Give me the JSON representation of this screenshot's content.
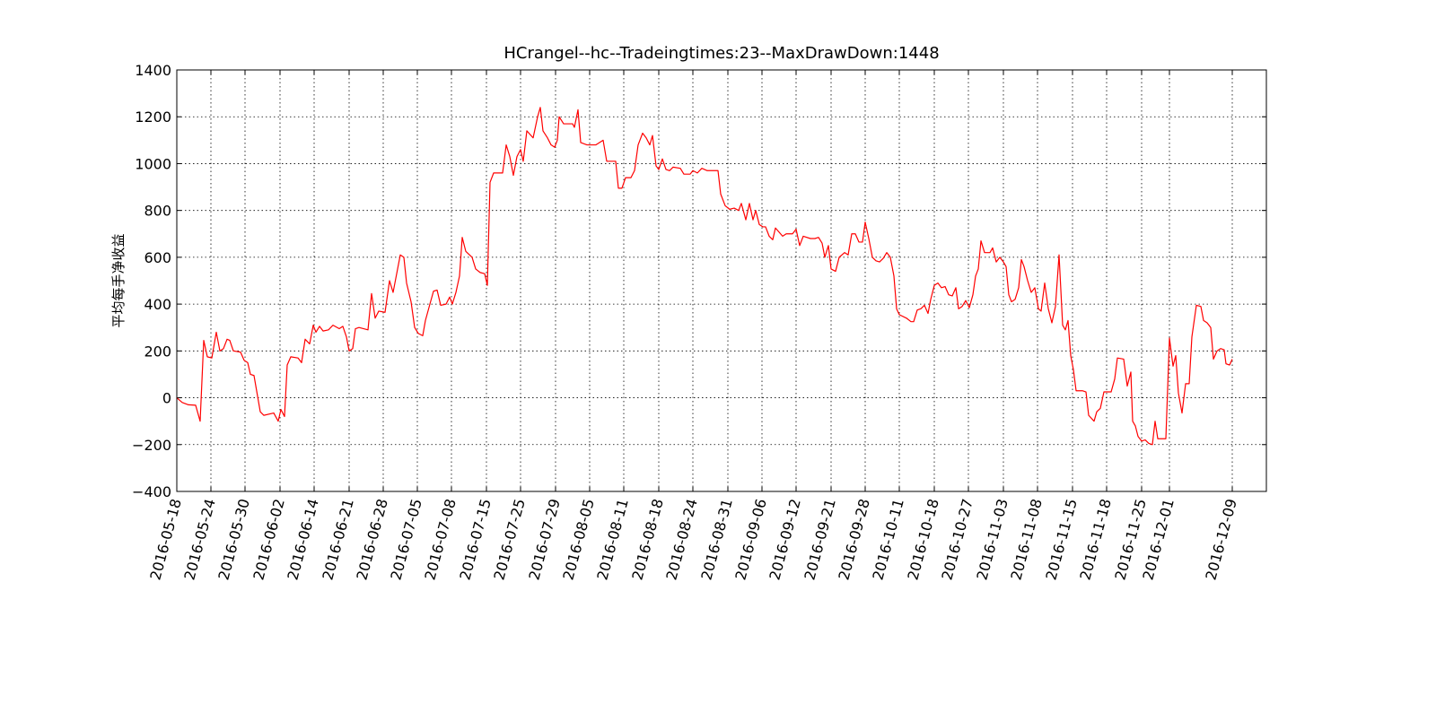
{
  "chart_data": {
    "type": "line",
    "title": "HCrangel--hc--Tradeingtimes:23--MaxDrawDown:1448",
    "y_label": "平均每手净收益",
    "x": [
      0,
      6,
      13,
      21,
      26,
      30,
      34,
      39,
      44,
      48,
      52,
      56,
      59,
      63,
      71,
      75,
      79,
      82,
      86,
      93,
      97,
      108,
      113,
      116,
      120,
      123,
      127,
      135,
      139,
      143,
      148,
      152,
      155,
      159,
      163,
      169,
      174,
      181,
      185,
      189,
      192,
      196,
      199,
      203,
      213,
      217,
      221,
      225,
      232,
      237,
      241,
      249,
      253,
      256,
      261,
      265,
      269,
      274,
      277,
      282,
      286,
      290,
      294,
      300,
      304,
      307,
      311,
      315,
      318,
      322,
      329,
      333,
      338,
      343,
      346,
      349,
      353,
      363,
      367,
      371,
      375,
      379,
      383,
      386,
      390,
      397,
      402,
      405,
      408,
      413,
      417,
      421,
      424,
      426,
      431,
      441,
      443,
      447,
      450,
      457,
      467,
      475,
      479,
      489,
      492,
      496,
      500,
      506,
      510,
      514,
      519,
      523,
      527,
      530,
      534,
      537,
      541,
      545,
      549,
      553,
      561,
      565,
      572,
      575,
      580,
      585,
      591,
      603,
      606,
      611,
      616,
      621,
      626,
      629,
      634,
      638,
      642,
      645,
      649,
      653,
      656,
      660,
      664,
      667,
      675,
      679,
      686,
      690,
      694,
      698,
      706,
      711,
      715,
      719,
      722,
      726,
      729,
      734,
      738,
      744,
      748,
      752,
      756,
      760,
      764,
      767,
      771,
      775,
      779,
      783,
      787,
      791,
      795,
      799,
      802,
      805,
      813,
      818,
      821,
      825,
      829,
      833,
      837,
      840,
      844,
      848,
      852,
      856,
      860,
      864,
      868,
      871,
      875,
      879,
      883,
      887,
      890,
      893,
      896,
      900,
      906,
      909,
      913,
      917,
      921,
      924,
      927,
      930,
      934,
      938,
      941,
      944,
      948,
      952,
      956,
      960,
      963,
      967,
      971,
      975,
      979,
      983,
      987,
      990,
      993,
      996,
      999,
      1002,
      1009,
      1013,
      1016,
      1022,
      1025,
      1029,
      1033,
      1041,
      1045,
      1048,
      1055,
      1059,
      1063,
      1065,
      1068,
      1071,
      1075,
      1079,
      1083,
      1087,
      1090,
      1093,
      1102,
      1106,
      1110,
      1113,
      1116,
      1120,
      1124,
      1128,
      1131,
      1136,
      1141,
      1144,
      1148,
      1152,
      1155,
      1159,
      1163,
      1167,
      1169,
      1173,
      1176
    ],
    "series": [
      {
        "color": "#ff0000",
        "values": [
          0,
          -20,
          -30,
          -32,
          -100,
          245,
          175,
          170,
          280,
          200,
          210,
          250,
          245,
          200,
          195,
          160,
          150,
          100,
          95,
          -60,
          -75,
          -65,
          -100,
          -50,
          -80,
          140,
          175,
          170,
          150,
          250,
          230,
          310,
          280,
          305,
          285,
          290,
          310,
          295,
          305,
          260,
          200,
          210,
          295,
          300,
          290,
          445,
          340,
          370,
          365,
          500,
          450,
          610,
          600,
          490,
          410,
          300,
          275,
          265,
          330,
          400,
          455,
          460,
          395,
          400,
          430,
          400,
          450,
          520,
          685,
          625,
          600,
          550,
          535,
          530,
          480,
          920,
          960,
          960,
          1080,
          1030,
          950,
          1030,
          1060,
          1010,
          1140,
          1110,
          1200,
          1240,
          1140,
          1110,
          1080,
          1070,
          1100,
          1200,
          1170,
          1170,
          1155,
          1230,
          1090,
          1080,
          1080,
          1100,
          1010,
          1010,
          895,
          895,
          940,
          940,
          970,
          1080,
          1130,
          1110,
          1080,
          1120,
          990,
          975,
          1020,
          975,
          970,
          985,
          980,
          955,
          955,
          970,
          960,
          980,
          970,
          970,
          870,
          820,
          805,
          810,
          800,
          830,
          760,
          830,
          760,
          800,
          740,
          730,
          730,
          690,
          675,
          725,
          690,
          700,
          700,
          720,
          650,
          690,
          680,
          680,
          685,
          660,
          600,
          650,
          550,
          540,
          600,
          620,
          610,
          700,
          700,
          665,
          665,
          750,
          680,
          600,
          585,
          580,
          595,
          620,
          600,
          520,
          380,
          355,
          340,
          325,
          325,
          375,
          380,
          395,
          360,
          420,
          480,
          490,
          470,
          475,
          440,
          435,
          470,
          380,
          390,
          415,
          385,
          440,
          520,
          550,
          670,
          620,
          620,
          640,
          580,
          600,
          580,
          560,
          440,
          410,
          420,
          470,
          590,
          560,
          500,
          450,
          470,
          380,
          370,
          490,
          380,
          320,
          390,
          610,
          310,
          290,
          330,
          180,
          120,
          30,
          30,
          25,
          -75,
          -100,
          -60,
          -45,
          25,
          25,
          80,
          170,
          165,
          50,
          110,
          -100,
          -120,
          -165,
          -185,
          -180,
          -195,
          -200,
          -100,
          -175,
          -175,
          255,
          135,
          180,
          20,
          -65,
          60,
          60,
          260,
          395,
          390,
          330,
          320,
          300,
          165,
          200,
          210,
          205,
          145,
          140,
          165
        ]
      }
    ],
    "xlim": [
      0,
      1214
    ],
    "ylim": [
      -400,
      1400
    ],
    "xticks": [
      {
        "value": 0,
        "label": "2016-05-18"
      },
      {
        "value": 38,
        "label": "2016-05-24"
      },
      {
        "value": 76,
        "label": "2016-05-30"
      },
      {
        "value": 115,
        "label": "2016-06-02"
      },
      {
        "value": 153,
        "label": "2016-06-14"
      },
      {
        "value": 192,
        "label": "2016-06-21"
      },
      {
        "value": 230,
        "label": "2016-06-28"
      },
      {
        "value": 268,
        "label": "2016-07-05"
      },
      {
        "value": 306,
        "label": "2016-07-08"
      },
      {
        "value": 345,
        "label": "2016-07-15"
      },
      {
        "value": 383,
        "label": "2016-07-25"
      },
      {
        "value": 422,
        "label": "2016-07-29"
      },
      {
        "value": 460,
        "label": "2016-08-05"
      },
      {
        "value": 498,
        "label": "2016-08-11"
      },
      {
        "value": 537,
        "label": "2016-08-18"
      },
      {
        "value": 575,
        "label": "2016-08-24"
      },
      {
        "value": 614,
        "label": "2016-08-31"
      },
      {
        "value": 652,
        "label": "2016-09-06"
      },
      {
        "value": 690,
        "label": "2016-09-12"
      },
      {
        "value": 729,
        "label": "2016-09-21"
      },
      {
        "value": 767,
        "label": "2016-09-28"
      },
      {
        "value": 805,
        "label": "2016-10-11"
      },
      {
        "value": 844,
        "label": "2016-10-18"
      },
      {
        "value": 882,
        "label": "2016-10-27"
      },
      {
        "value": 921,
        "label": "2016-11-03"
      },
      {
        "value": 959,
        "label": "2016-11-08"
      },
      {
        "value": 998,
        "label": "2016-11-15"
      },
      {
        "value": 1036,
        "label": "2016-11-18"
      },
      {
        "value": 1075,
        "label": "2016-11-25"
      },
      {
        "value": 1106,
        "label": "2016-12-01"
      },
      {
        "value": 1176,
        "label": "2016-12-09"
      }
    ],
    "yticks": [
      {
        "value": -400,
        "label": "−400"
      },
      {
        "value": -200,
        "label": "−200"
      },
      0,
      200,
      400,
      600,
      800,
      1000,
      1200,
      1400
    ],
    "grid": true
  }
}
